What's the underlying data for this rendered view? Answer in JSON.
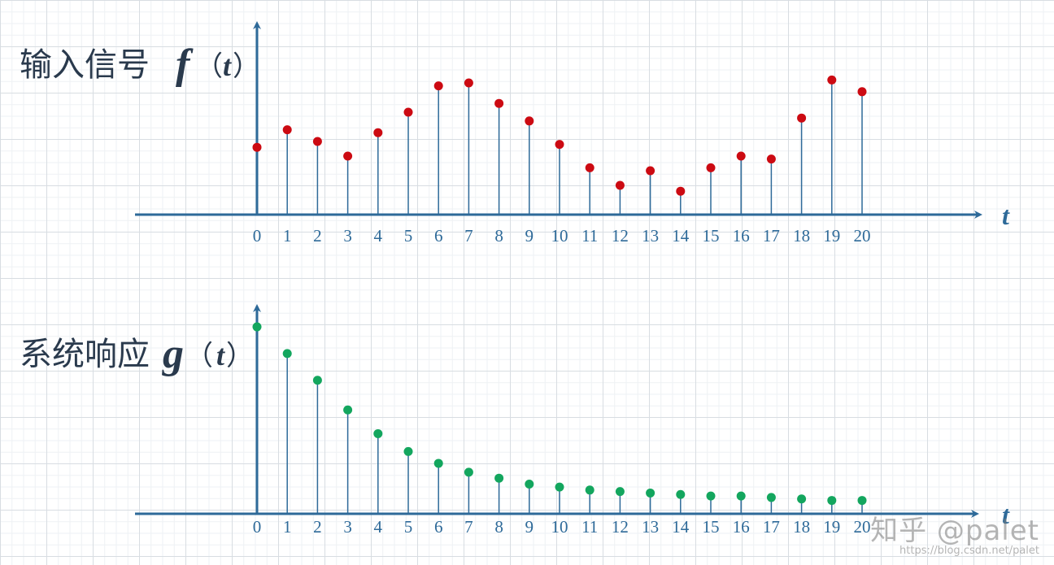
{
  "colors": {
    "axis": "#2e6a99",
    "stem": "#2e6a99",
    "top_marker": "#cc0a12",
    "bottom_marker": "#13a65e",
    "tick_text": "#2e6a99",
    "label_text": "#2a3a4d"
  },
  "chart_data": [
    {
      "type": "stem",
      "title_cn": "输入信号",
      "title_func": "f",
      "title_paren_open": "（",
      "title_var": "t",
      "title_paren_close": "）",
      "x_axis_label": "t",
      "x": [
        0,
        1,
        2,
        3,
        4,
        5,
        6,
        7,
        8,
        9,
        10,
        11,
        12,
        13,
        14,
        15,
        16,
        17,
        18,
        19,
        20
      ],
      "values": [
        2.3,
        2.9,
        2.5,
        2.0,
        2.8,
        3.5,
        4.4,
        4.5,
        3.8,
        3.2,
        2.4,
        1.6,
        1.0,
        1.5,
        0.8,
        1.6,
        2.0,
        1.9,
        3.3,
        4.6,
        4.2
      ]
    },
    {
      "type": "stem",
      "title_cn": "系统响应",
      "title_func": "g",
      "title_paren_open": "（",
      "title_var": "t",
      "title_paren_close": "）",
      "x_axis_label": "t",
      "x": [
        0,
        1,
        2,
        3,
        4,
        5,
        6,
        7,
        8,
        9,
        10,
        11,
        12,
        13,
        14,
        15,
        16,
        17,
        18,
        19,
        20
      ],
      "values": [
        6.3,
        5.4,
        4.5,
        3.5,
        2.7,
        2.1,
        1.7,
        1.4,
        1.2,
        1.0,
        0.9,
        0.8,
        0.75,
        0.7,
        0.65,
        0.6,
        0.6,
        0.55,
        0.5,
        0.45,
        0.45
      ]
    }
  ],
  "watermark": {
    "main": "知乎 @palet",
    "sub": "https://blog.csdn.net/palet"
  }
}
